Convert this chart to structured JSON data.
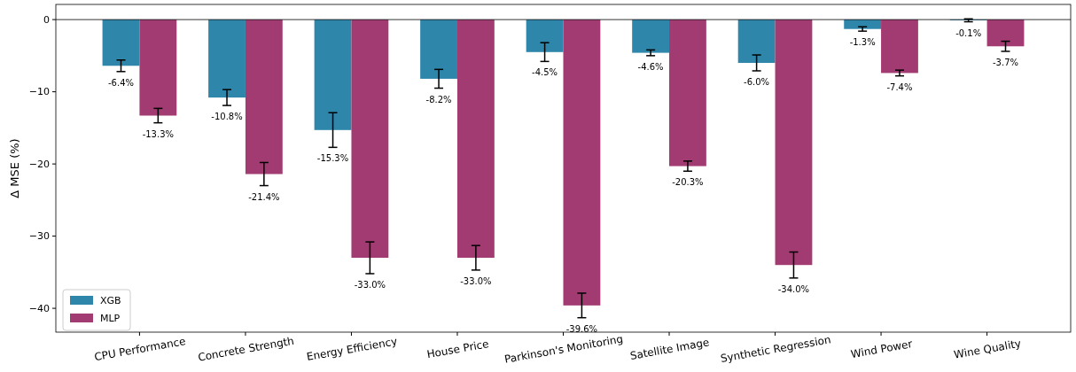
{
  "chart_data": {
    "type": "bar",
    "ylabel": "Δ MSE (%)",
    "categories": [
      "CPU Performance",
      "Concrete Strength",
      "Energy Efficiency",
      "House Price",
      "Parkinson's Monitoring",
      "Satellite Image",
      "Synthetic Regression",
      "Wind Power",
      "Wine Quality"
    ],
    "series": [
      {
        "name": "XGB",
        "color": "#2e86ab",
        "values": [
          -6.4,
          -10.8,
          -15.3,
          -8.2,
          -4.5,
          -4.6,
          -6.0,
          -1.3,
          -0.1
        ],
        "errors": [
          0.8,
          1.1,
          2.4,
          1.3,
          1.3,
          0.4,
          1.1,
          0.3,
          0.2
        ],
        "value_labels": [
          "-6.4%",
          "-10.8%",
          "-15.3%",
          "-8.2%",
          "-4.5%",
          "-4.6%",
          "-6.0%",
          "-1.3%",
          "-0.1%"
        ]
      },
      {
        "name": "MLP",
        "color": "#a23b72",
        "values": [
          -13.3,
          -21.4,
          -33.0,
          -33.0,
          -39.6,
          -20.3,
          -34.0,
          -7.4,
          -3.7
        ],
        "errors": [
          1.0,
          1.6,
          2.2,
          1.7,
          1.7,
          0.7,
          1.8,
          0.4,
          0.7
        ],
        "value_labels": [
          "-13.3%",
          "-21.4%",
          "-33.0%",
          "-33.0%",
          "-39.6%",
          "-20.3%",
          "-34.0%",
          "-7.4%",
          "-3.7%"
        ]
      }
    ],
    "ylim": [
      -43.3,
      2.1
    ],
    "yticks": [
      0,
      -10,
      -20,
      -30,
      -40
    ],
    "grid": false,
    "legend": "bottom left",
    "ref_lines": [
      {
        "axis": "y",
        "value": 0,
        "color": "#000000"
      }
    ]
  }
}
